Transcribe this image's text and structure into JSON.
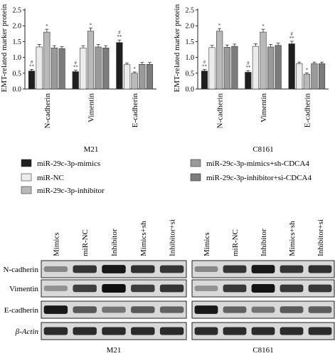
{
  "chart_data": [
    {
      "type": "bar",
      "title": "M21",
      "ylabel": "EMT-related marker protein",
      "ylim": [
        0,
        2.5
      ],
      "yticks": [
        "0.0",
        "0.5",
        "1.0",
        "1.5",
        "2.0",
        "2.5"
      ],
      "categories": [
        "N-cadherin",
        "Vimentin",
        "E-cadherin"
      ],
      "series": [
        {
          "name": "miR-29c-3p-mimics",
          "values": [
            0.57,
            0.55,
            1.47
          ],
          "errors": [
            0.05,
            0.05,
            0.08
          ]
        },
        {
          "name": "miR-NC",
          "values": [
            1.33,
            1.3,
            0.77
          ],
          "errors": [
            0.08,
            0.07,
            0.05
          ]
        },
        {
          "name": "miR-29c-3p-inhibitor",
          "values": [
            1.8,
            1.83,
            0.5
          ],
          "errors": [
            0.09,
            0.1,
            0.04
          ]
        },
        {
          "name": "miR-29c-3p-mimics+sh-CDCA4",
          "values": [
            1.3,
            1.33,
            0.78
          ],
          "errors": [
            0.07,
            0.08,
            0.06
          ]
        },
        {
          "name": "miR-29c-3p-inhibitor+si-CDCA4",
          "values": [
            1.28,
            1.3,
            0.78
          ],
          "errors": [
            0.06,
            0.07,
            0.06
          ]
        }
      ],
      "annotations": [
        {
          "category": 0,
          "series": 0,
          "text": [
            "#",
            "**"
          ]
        },
        {
          "category": 0,
          "series": 2,
          "text": [
            "*"
          ]
        },
        {
          "category": 1,
          "series": 0,
          "text": [
            "#",
            "**"
          ]
        },
        {
          "category": 1,
          "series": 2,
          "text": [
            "*"
          ]
        },
        {
          "category": 2,
          "series": 0,
          "text": [
            "#",
            "**"
          ]
        },
        {
          "category": 2,
          "series": 2,
          "text": [
            "*"
          ]
        }
      ]
    },
    {
      "type": "bar",
      "title": "C8161",
      "ylabel": "EMT-related marker protein",
      "ylim": [
        0,
        2.5
      ],
      "yticks": [
        "0.0",
        "0.5",
        "1.0",
        "1.5",
        "2.0",
        "2.5"
      ],
      "categories": [
        "N-cadherin",
        "Vimentin",
        "E-cadherin"
      ],
      "series": [
        {
          "name": "miR-29c-3p-mimics",
          "values": [
            0.57,
            0.53,
            1.43
          ],
          "errors": [
            0.05,
            0.05,
            0.08
          ]
        },
        {
          "name": "miR-NC",
          "values": [
            1.31,
            1.35,
            0.8
          ],
          "errors": [
            0.07,
            0.08,
            0.05
          ]
        },
        {
          "name": "miR-29c-3p-inhibitor",
          "values": [
            1.83,
            1.8,
            0.47
          ],
          "errors": [
            0.08,
            0.09,
            0.04
          ]
        },
        {
          "name": "miR-29c-3p-mimics+sh-CDCA4",
          "values": [
            1.32,
            1.33,
            0.8
          ],
          "errors": [
            0.07,
            0.08,
            0.05
          ]
        },
        {
          "name": "miR-29c-3p-inhibitor+si-CDCA4",
          "values": [
            1.35,
            1.38,
            0.8
          ],
          "errors": [
            0.07,
            0.07,
            0.05
          ]
        }
      ],
      "annotations": [
        {
          "category": 0,
          "series": 0,
          "text": [
            "#",
            "**"
          ]
        },
        {
          "category": 0,
          "series": 2,
          "text": [
            "*"
          ]
        },
        {
          "category": 1,
          "series": 0,
          "text": [
            "#",
            "**"
          ]
        },
        {
          "category": 1,
          "series": 2,
          "text": [
            "*"
          ]
        },
        {
          "category": 2,
          "series": 0,
          "text": [
            "#",
            "**"
          ]
        },
        {
          "category": 2,
          "series": 2,
          "text": [
            "*"
          ]
        }
      ]
    }
  ],
  "series_colors": [
    "#1f1f1f",
    "#ececec",
    "#b9b9b9",
    "#9a9a9a",
    "#7c7c7c"
  ],
  "legend": [
    {
      "label": "miR-29c-3p-mimics"
    },
    {
      "label": "miR-29c-3p-mimics+sh-CDCA4"
    },
    {
      "label": "miR-NC"
    },
    {
      "label": "miR-29c-3p-inhibitor+si-CDCA4"
    },
    {
      "label": "miR-29c-3p-inhibitor"
    }
  ],
  "blot": {
    "lanes": [
      "Mimics",
      "miR-NC",
      "Inhibitor",
      "Mimics+sh",
      "Inhibitor+si"
    ],
    "rows": [
      "N-cadherin",
      "Vimentin",
      "E-cadherin",
      "β-Actin"
    ],
    "panels": [
      {
        "title": "M21",
        "intensity": [
          [
            0.35,
            0.8,
            0.95,
            0.82,
            0.8
          ],
          [
            0.3,
            0.75,
            1.0,
            0.75,
            0.8
          ],
          [
            0.95,
            0.6,
            0.45,
            0.6,
            0.55
          ],
          [
            0.85,
            0.85,
            0.85,
            0.85,
            0.85
          ]
        ]
      },
      {
        "title": "C8161",
        "intensity": [
          [
            0.35,
            0.8,
            0.95,
            0.8,
            0.82
          ],
          [
            0.3,
            0.78,
            0.98,
            0.78,
            0.78
          ],
          [
            0.95,
            0.55,
            0.45,
            0.6,
            0.58
          ],
          [
            0.85,
            0.85,
            0.85,
            0.85,
            0.85
          ]
        ]
      }
    ]
  }
}
